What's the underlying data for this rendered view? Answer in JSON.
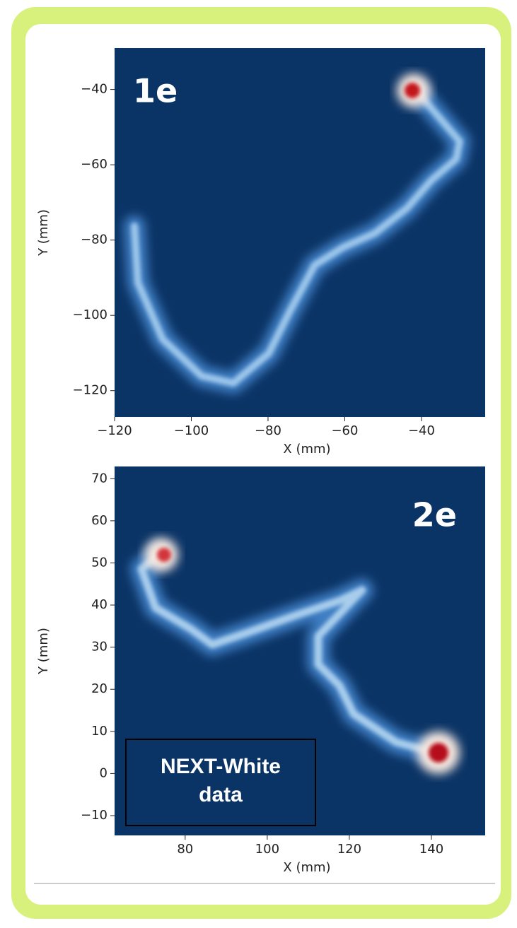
{
  "panels": [
    {
      "label": "1e",
      "xlabel": "X (mm)",
      "ylabel": "Y (mm)",
      "xlim": [
        -120,
        -23.4
      ],
      "ylim": [
        -127,
        -29
      ],
      "xticks": [
        {
          "value": -120,
          "label": "−120"
        },
        {
          "value": -100,
          "label": "−100"
        },
        {
          "value": -80,
          "label": "−80"
        },
        {
          "value": -60,
          "label": "−60"
        },
        {
          "value": -40,
          "label": "−40"
        }
      ],
      "yticks": [
        {
          "value": -40,
          "label": "−40"
        },
        {
          "value": -60,
          "label": "−60"
        },
        {
          "value": -80,
          "label": "−80"
        },
        {
          "value": -100,
          "label": "−100"
        },
        {
          "value": -120,
          "label": "−120"
        }
      ]
    },
    {
      "label": "2e",
      "xlabel": "X (mm)",
      "ylabel": "Y (mm)",
      "xlim": [
        62.8,
        153.1
      ],
      "ylim": [
        -14.7,
        72.9
      ],
      "xticks": [
        80,
        100,
        120,
        140
      ],
      "yticks": [
        70,
        60,
        50,
        40,
        30,
        20,
        10,
        0,
        {
          "value": -10,
          "label": "−10"
        }
      ],
      "annotation": [
        "NEXT-White",
        "data"
      ]
    }
  ]
}
